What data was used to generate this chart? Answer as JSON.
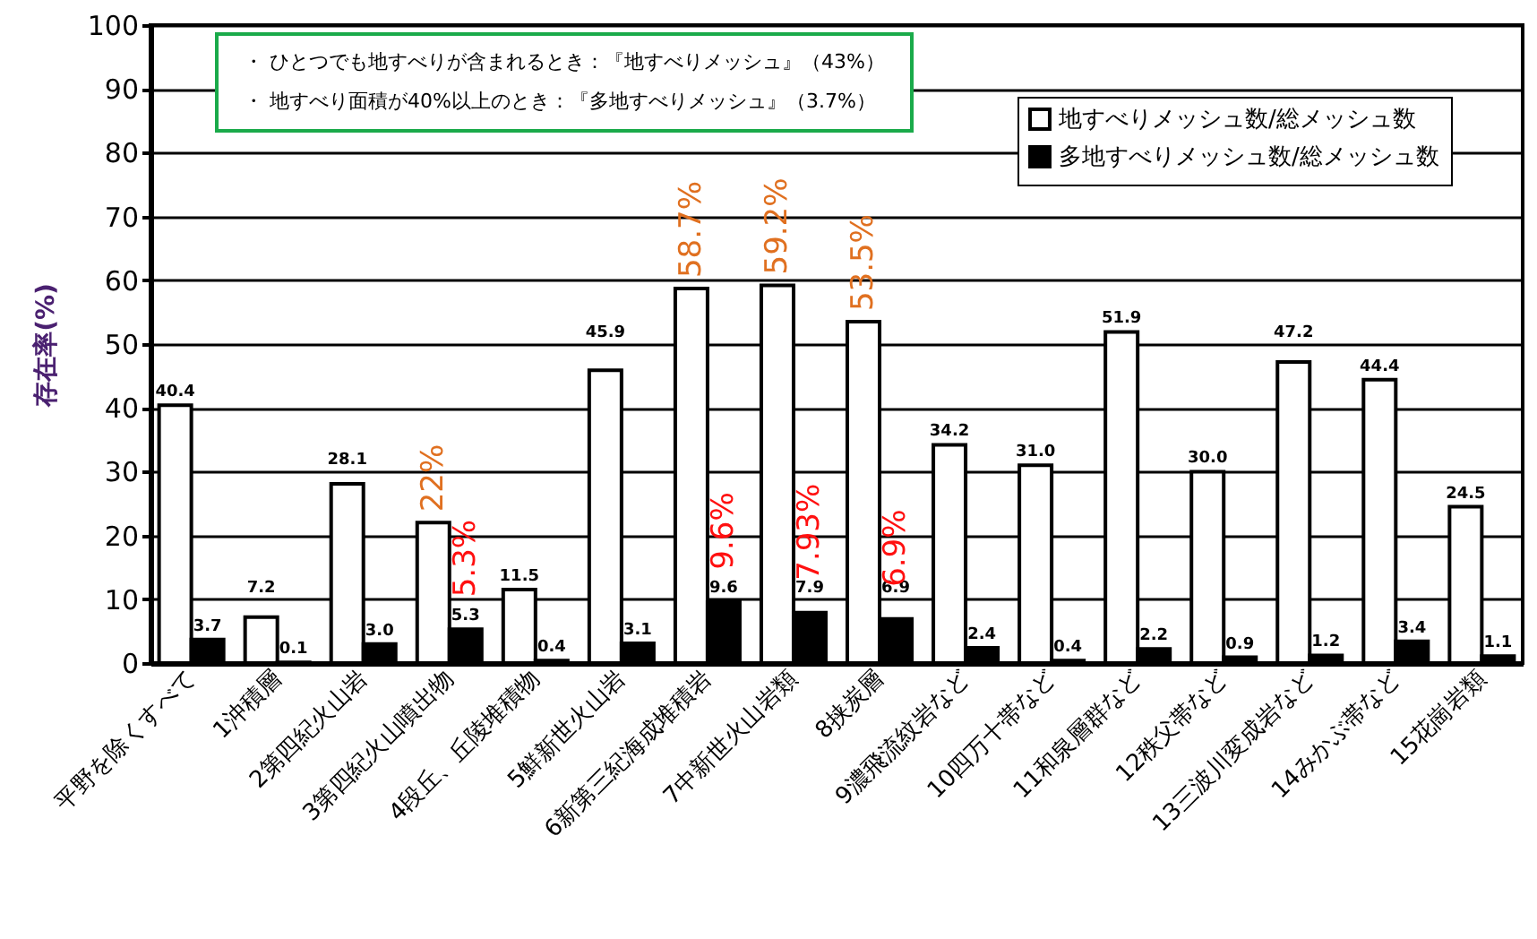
{
  "chart_data": {
    "type": "bar",
    "ylabel": "存在率(%)",
    "categories": [
      "平野を除くすべて",
      "1沖積層",
      "2第四紀火山岩",
      "3第四紀火山噴出物",
      "4段丘、丘陵堆積物",
      "5鮮新世火山岩",
      "6新第三紀海成堆積岩",
      "7中新世火山岩類",
      "8挟炭層",
      "9濃飛流紋岩など",
      "10四万十帯など",
      "11和泉層群など",
      "12秩父帯など",
      "13三波川変成岩など",
      "14みかぶ帯など",
      "15花崗岩類"
    ],
    "series": [
      {
        "name": "地すべりメッシュ数/総メッシュ数",
        "color": "#ffffff",
        "values": [
          40.4,
          7.2,
          28.1,
          22,
          11.5,
          45.9,
          58.7,
          59.2,
          53.5,
          34.2,
          31.0,
          51.9,
          30.0,
          47.2,
          44.4,
          24.5
        ],
        "value_labels": [
          "40.4",
          "7.2",
          "28.1",
          null,
          "11.5",
          "45.9",
          null,
          null,
          null,
          "34.2",
          "31.0",
          "51.9",
          "30.0",
          "47.2",
          "44.4",
          "24.5"
        ]
      },
      {
        "name": "多地すべりメッシュ数/総メッシュ数",
        "color": "#000000",
        "values": [
          3.7,
          0.1,
          3.0,
          5.3,
          0.4,
          3.1,
          9.6,
          7.9,
          6.9,
          2.4,
          0.4,
          2.2,
          0.9,
          1.2,
          3.4,
          1.1
        ],
        "value_labels": [
          "3.7",
          "0.1",
          "3.0",
          "5.3",
          "0.4",
          "3.1",
          "9.6",
          "7.9",
          "6.9",
          "2.4",
          "0.4",
          "2.2",
          "0.9",
          "1.2",
          "3.4",
          "1.1"
        ]
      }
    ],
    "ylim": [
      0,
      100
    ],
    "yticks": [
      0,
      10,
      20,
      30,
      40,
      50,
      60,
      70,
      80,
      90,
      100
    ],
    "grid": "y",
    "legend": "top right",
    "annotations": [
      "・ ひとつでも地すべりが含まれるとき：『地すべりメッシュ』（43%）",
      "・ 地すべり面積が40%以上のとき：『多地すべりメッシュ』（3.7%）",
      {
        "text": "22%",
        "x": "3第四紀火山噴出物",
        "y": 22
      },
      {
        "text": "5.3%",
        "x": "3第四紀火山噴出物",
        "y": 5.3
      },
      {
        "text": "58.7%",
        "x": "6新第三紀海成堆積岩",
        "y": 58.7
      },
      {
        "text": "9.6%",
        "x": "6新第三紀海成堆積岩",
        "y": 9.6
      },
      {
        "text": "59.2%",
        "x": "7中新世火山岩類",
        "y": 59.2
      },
      {
        "text": "7.93%",
        "x": "7中新世火山岩類",
        "y": 7.9
      },
      {
        "text": "53.5%",
        "x": "8挟炭層",
        "y": 53.5
      },
      {
        "text": "6.9%",
        "x": "8挟炭層",
        "y": 6.9
      }
    ]
  }
}
